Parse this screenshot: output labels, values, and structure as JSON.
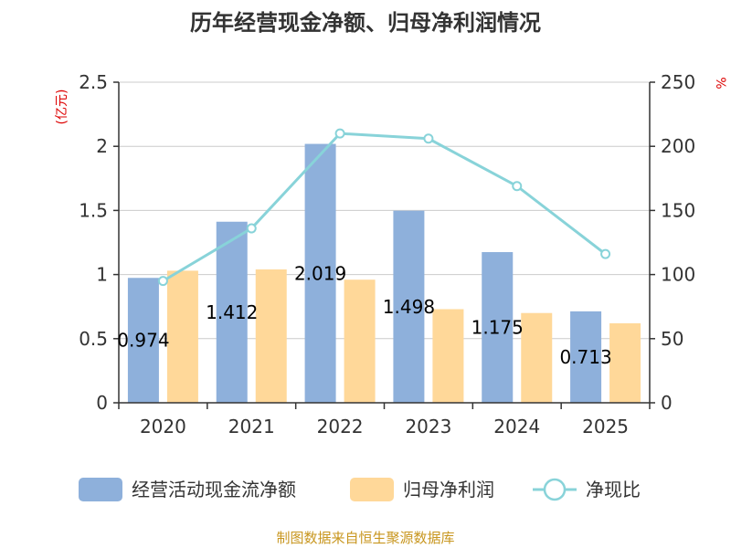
{
  "chart_data": {
    "type": "bar+line",
    "title": "历年经营现金净额、归母净利润情况",
    "categories": [
      "2020",
      "2021",
      "2022",
      "2023",
      "2024",
      "2025"
    ],
    "series": [
      {
        "name": "经营活动现金流净额",
        "type": "bar",
        "axis": "left",
        "color": "#8eb0db",
        "values": [
          0.974,
          1.412,
          2.019,
          1.498,
          1.175,
          0.713
        ],
        "labels": [
          "0.974",
          "1.412",
          "2.019",
          "1.498",
          "1.175",
          "0.713"
        ]
      },
      {
        "name": "归母净利润",
        "type": "bar",
        "axis": "left",
        "color": "#ffd899",
        "values": [
          1.03,
          1.04,
          0.96,
          0.73,
          0.7,
          0.62
        ]
      },
      {
        "name": "净现比",
        "type": "line",
        "axis": "right",
        "color": "#88d3d9",
        "values": [
          95,
          136,
          210,
          206,
          169,
          116
        ]
      }
    ],
    "y_left": {
      "unit": "(亿元)",
      "min": 0,
      "max": 2.5,
      "ticks": [
        "0",
        "0.5",
        "1",
        "1.5",
        "2",
        "2.5"
      ]
    },
    "y_right": {
      "unit": "%",
      "min": 0,
      "max": 250,
      "ticks": [
        "0",
        "50",
        "100",
        "150",
        "200",
        "250"
      ]
    },
    "grid": true,
    "legend_position": "bottom"
  },
  "source": "制图数据来自恒生聚源数据库",
  "colors": {
    "unit": "#dd0000",
    "source": "#c8961e",
    "axis": "#333333",
    "grid": "#cccccc"
  }
}
